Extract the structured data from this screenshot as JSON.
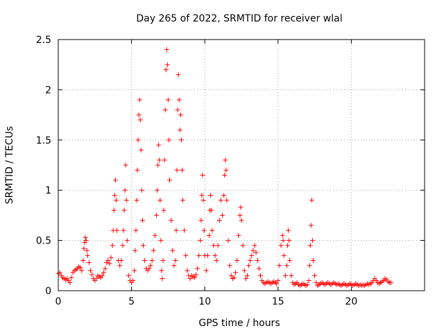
{
  "chart_data": {
    "type": "scatter",
    "title": "Day 265 of 2022, SRMTID for receiver wlal",
    "xlabel": "GPS time / hours",
    "ylabel": "SRMTID / TECUs",
    "xlim": [
      0,
      25
    ],
    "ylim": [
      0,
      2.5
    ],
    "x_ticks": [
      0,
      5,
      10,
      15,
      20
    ],
    "x_tick_labels": [
      "0",
      "5",
      "10",
      "15",
      "20"
    ],
    "y_ticks": [
      0,
      0.5,
      1,
      1.5,
      2,
      2.5
    ],
    "y_tick_labels": [
      "0",
      "0.5",
      "1",
      "1.5",
      "2",
      "2.5"
    ],
    "grid": true,
    "marker": "+",
    "color": "#ff0000",
    "series": [
      {
        "name": "SRMTID",
        "points": [
          [
            0.0,
            0.17
          ],
          [
            0.1,
            0.18
          ],
          [
            0.2,
            0.15
          ],
          [
            0.3,
            0.13
          ],
          [
            0.4,
            0.12
          ],
          [
            0.5,
            0.11
          ],
          [
            0.6,
            0.12
          ],
          [
            0.7,
            0.1
          ],
          [
            0.8,
            0.08
          ],
          [
            0.9,
            0.13
          ],
          [
            1.0,
            0.18
          ],
          [
            1.1,
            0.2
          ],
          [
            1.2,
            0.21
          ],
          [
            1.3,
            0.22
          ],
          [
            1.4,
            0.24
          ],
          [
            1.5,
            0.23
          ],
          [
            1.6,
            0.2
          ],
          [
            1.7,
            0.3
          ],
          [
            1.75,
            0.42
          ],
          [
            1.8,
            0.48
          ],
          [
            1.85,
            0.53
          ],
          [
            1.9,
            0.5
          ],
          [
            1.95,
            0.4
          ],
          [
            2.0,
            0.35
          ],
          [
            2.1,
            0.28
          ],
          [
            2.2,
            0.2
          ],
          [
            2.3,
            0.16
          ],
          [
            2.4,
            0.12
          ],
          [
            2.5,
            0.1
          ],
          [
            2.6,
            0.12
          ],
          [
            2.7,
            0.15
          ],
          [
            2.8,
            0.14
          ],
          [
            2.9,
            0.13
          ],
          [
            3.0,
            0.15
          ],
          [
            3.1,
            0.18
          ],
          [
            3.2,
            0.22
          ],
          [
            3.3,
            0.28
          ],
          [
            3.4,
            0.3
          ],
          [
            3.5,
            0.27
          ],
          [
            3.6,
            0.33
          ],
          [
            3.7,
            0.45
          ],
          [
            3.75,
            0.6
          ],
          [
            3.8,
            0.8
          ],
          [
            3.85,
            0.95
          ],
          [
            3.9,
            1.1
          ],
          [
            3.95,
            0.9
          ],
          [
            4.0,
            0.6
          ],
          [
            4.1,
            0.3
          ],
          [
            4.2,
            0.25
          ],
          [
            4.3,
            0.3
          ],
          [
            4.4,
            0.45
          ],
          [
            4.45,
            0.6
          ],
          [
            4.5,
            0.8
          ],
          [
            4.55,
            1.0
          ],
          [
            4.6,
            1.25
          ],
          [
            4.65,
            0.9
          ],
          [
            4.7,
            0.5
          ],
          [
            4.8,
            0.15
          ],
          [
            4.9,
            0.1
          ],
          [
            5.0,
            0.08
          ],
          [
            5.1,
            0.1
          ],
          [
            5.2,
            0.2
          ],
          [
            5.25,
            0.4
          ],
          [
            5.3,
            0.6
          ],
          [
            5.35,
            0.9
          ],
          [
            5.4,
            1.2
          ],
          [
            5.45,
            1.5
          ],
          [
            5.5,
            1.75
          ],
          [
            5.55,
            1.9
          ],
          [
            5.6,
            1.7
          ],
          [
            5.65,
            1.4
          ],
          [
            5.7,
            1.0
          ],
          [
            5.75,
            0.7
          ],
          [
            5.8,
            0.45
          ],
          [
            5.9,
            0.3
          ],
          [
            6.0,
            0.22
          ],
          [
            6.1,
            0.2
          ],
          [
            6.2,
            0.22
          ],
          [
            6.3,
            0.25
          ],
          [
            6.4,
            0.3
          ],
          [
            6.5,
            0.4
          ],
          [
            6.6,
            0.55
          ],
          [
            6.7,
            0.75
          ],
          [
            6.75,
            1.0
          ],
          [
            6.8,
            1.25
          ],
          [
            6.85,
            1.45
          ],
          [
            6.9,
            1.3
          ],
          [
            6.95,
            0.9
          ],
          [
            7.0,
            0.5
          ],
          [
            7.05,
            0.2
          ],
          [
            7.1,
            0.12
          ],
          [
            7.15,
            0.3
          ],
          [
            7.2,
            0.8
          ],
          [
            7.25,
            1.3
          ],
          [
            7.3,
            1.8
          ],
          [
            7.35,
            2.2
          ],
          [
            7.4,
            2.4
          ],
          [
            7.45,
            2.25
          ],
          [
            7.5,
            1.9
          ],
          [
            7.55,
            1.5
          ],
          [
            7.6,
            1.1
          ],
          [
            7.7,
            0.7
          ],
          [
            7.8,
            0.4
          ],
          [
            7.9,
            0.25
          ],
          [
            8.0,
            0.3
          ],
          [
            8.05,
            0.6
          ],
          [
            8.1,
            1.2
          ],
          [
            8.15,
            1.8
          ],
          [
            8.2,
            2.15
          ],
          [
            8.25,
            1.9
          ],
          [
            8.3,
            1.6
          ],
          [
            8.35,
            1.75
          ],
          [
            8.4,
            1.5
          ],
          [
            8.45,
            1.2
          ],
          [
            8.5,
            0.9
          ],
          [
            8.6,
            0.6
          ],
          [
            8.7,
            0.35
          ],
          [
            8.8,
            0.2
          ],
          [
            8.9,
            0.15
          ],
          [
            9.0,
            0.12
          ],
          [
            9.1,
            0.15
          ],
          [
            9.2,
            0.14
          ],
          [
            9.3,
            0.13
          ],
          [
            9.4,
            0.16
          ],
          [
            9.5,
            0.22
          ],
          [
            9.6,
            0.35
          ],
          [
            9.7,
            0.5
          ],
          [
            9.75,
            0.7
          ],
          [
            9.8,
            0.95
          ],
          [
            9.85,
            1.15
          ],
          [
            9.9,
            0.9
          ],
          [
            9.95,
            0.6
          ],
          [
            10.0,
            0.35
          ],
          [
            10.1,
            0.2
          ],
          [
            10.2,
            0.35
          ],
          [
            10.3,
            0.55
          ],
          [
            10.35,
            0.8
          ],
          [
            10.4,
            0.95
          ],
          [
            10.45,
            0.8
          ],
          [
            10.5,
            0.6
          ],
          [
            10.6,
            0.45
          ],
          [
            10.7,
            0.35
          ],
          [
            10.8,
            0.3
          ],
          [
            10.9,
            0.45
          ],
          [
            11.0,
            0.7
          ],
          [
            11.1,
            0.9
          ],
          [
            11.2,
            0.75
          ],
          [
            11.3,
            0.95
          ],
          [
            11.35,
            1.15
          ],
          [
            11.4,
            1.3
          ],
          [
            11.45,
            1.2
          ],
          [
            11.5,
            0.9
          ],
          [
            11.6,
            0.5
          ],
          [
            11.7,
            0.25
          ],
          [
            11.8,
            0.15
          ],
          [
            11.9,
            0.12
          ],
          [
            12.0,
            0.13
          ],
          [
            12.1,
            0.18
          ],
          [
            12.2,
            0.3
          ],
          [
            12.3,
            0.55
          ],
          [
            12.4,
            0.75
          ],
          [
            12.45,
            0.83
          ],
          [
            12.5,
            0.7
          ],
          [
            12.6,
            0.45
          ],
          [
            12.7,
            0.2
          ],
          [
            12.8,
            0.12
          ],
          [
            12.9,
            0.15
          ],
          [
            13.0,
            0.25
          ],
          [
            13.1,
            0.3
          ],
          [
            13.2,
            0.35
          ],
          [
            13.3,
            0.4
          ],
          [
            13.4,
            0.45
          ],
          [
            13.5,
            0.38
          ],
          [
            13.6,
            0.3
          ],
          [
            13.7,
            0.22
          ],
          [
            13.8,
            0.15
          ],
          [
            13.9,
            0.1
          ],
          [
            14.0,
            0.08
          ],
          [
            14.1,
            0.07
          ],
          [
            14.2,
            0.08
          ],
          [
            14.3,
            0.09
          ],
          [
            14.4,
            0.08
          ],
          [
            14.5,
            0.07
          ],
          [
            14.6,
            0.08
          ],
          [
            14.7,
            0.09
          ],
          [
            14.8,
            0.08
          ],
          [
            14.9,
            0.07
          ],
          [
            15.0,
            0.1
          ],
          [
            15.1,
            0.25
          ],
          [
            15.2,
            0.45
          ],
          [
            15.3,
            0.55
          ],
          [
            15.35,
            0.5
          ],
          [
            15.4,
            0.35
          ],
          [
            15.5,
            0.15
          ],
          [
            15.6,
            0.25
          ],
          [
            15.65,
            0.45
          ],
          [
            15.7,
            0.6
          ],
          [
            15.75,
            0.5
          ],
          [
            15.8,
            0.3
          ],
          [
            15.9,
            0.15
          ],
          [
            16.0,
            0.08
          ],
          [
            16.1,
            0.06
          ],
          [
            16.2,
            0.07
          ],
          [
            16.3,
            0.08
          ],
          [
            16.4,
            0.06
          ],
          [
            16.5,
            0.05
          ],
          [
            16.6,
            0.06
          ],
          [
            16.7,
            0.07
          ],
          [
            16.8,
            0.06
          ],
          [
            16.9,
            0.05
          ],
          [
            17.0,
            0.06
          ],
          [
            17.1,
            0.1
          ],
          [
            17.15,
            0.25
          ],
          [
            17.2,
            0.45
          ],
          [
            17.25,
            0.65
          ],
          [
            17.3,
            0.9
          ],
          [
            17.35,
            0.5
          ],
          [
            17.4,
            0.3
          ],
          [
            17.5,
            0.15
          ],
          [
            17.6,
            0.08
          ],
          [
            17.7,
            0.05
          ],
          [
            17.8,
            0.06
          ],
          [
            17.9,
            0.07
          ],
          [
            18.0,
            0.08
          ],
          [
            18.1,
            0.07
          ],
          [
            18.2,
            0.06
          ],
          [
            18.3,
            0.07
          ],
          [
            18.4,
            0.08
          ],
          [
            18.5,
            0.07
          ],
          [
            18.6,
            0.06
          ],
          [
            18.7,
            0.07
          ],
          [
            18.8,
            0.08
          ],
          [
            18.9,
            0.07
          ],
          [
            19.0,
            0.06
          ],
          [
            19.1,
            0.07
          ],
          [
            19.2,
            0.06
          ],
          [
            19.3,
            0.05
          ],
          [
            19.4,
            0.06
          ],
          [
            19.5,
            0.07
          ],
          [
            19.6,
            0.06
          ],
          [
            19.7,
            0.05
          ],
          [
            19.8,
            0.06
          ],
          [
            19.9,
            0.07
          ],
          [
            20.0,
            0.06
          ],
          [
            20.1,
            0.05
          ],
          [
            20.2,
            0.06
          ],
          [
            20.3,
            0.07
          ],
          [
            20.4,
            0.06
          ],
          [
            20.5,
            0.05
          ],
          [
            20.6,
            0.06
          ],
          [
            20.7,
            0.05
          ],
          [
            20.8,
            0.06
          ],
          [
            20.9,
            0.05
          ],
          [
            21.0,
            0.06
          ],
          [
            21.1,
            0.07
          ],
          [
            21.2,
            0.06
          ],
          [
            21.3,
            0.07
          ],
          [
            21.4,
            0.08
          ],
          [
            21.5,
            0.1
          ],
          [
            21.6,
            0.12
          ],
          [
            21.7,
            0.1
          ],
          [
            21.8,
            0.08
          ],
          [
            21.9,
            0.07
          ],
          [
            22.0,
            0.08
          ],
          [
            22.1,
            0.09
          ],
          [
            22.2,
            0.1
          ],
          [
            22.3,
            0.12
          ],
          [
            22.4,
            0.11
          ],
          [
            22.5,
            0.09
          ],
          [
            22.6,
            0.08
          ],
          [
            22.7,
            0.08
          ]
        ]
      }
    ]
  }
}
